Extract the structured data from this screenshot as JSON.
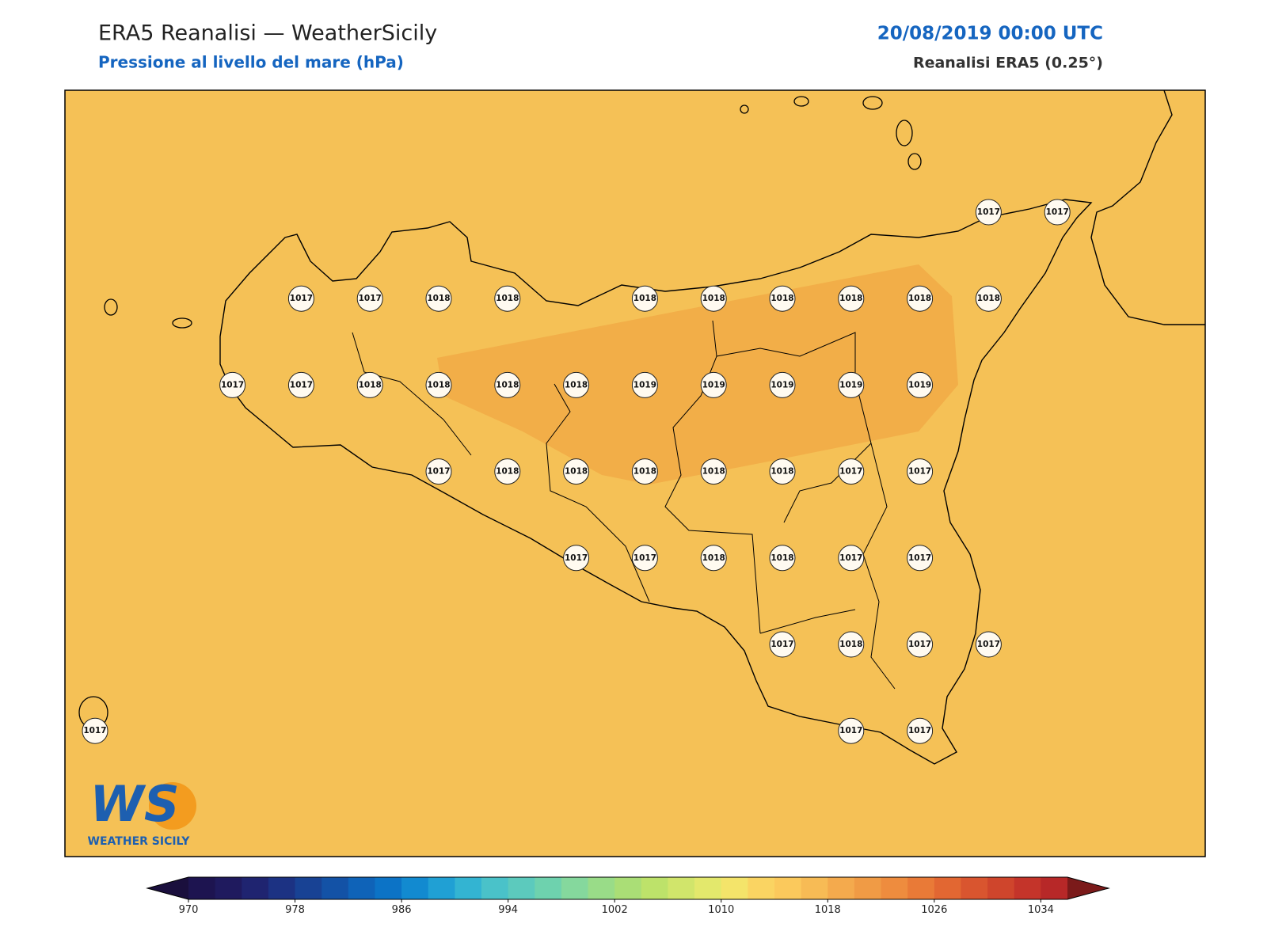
{
  "header": {
    "title": "ERA5 Reanalisi — WeatherSicily",
    "subtitle": "Pressione al livello del mare (hPa)",
    "date": "20/08/2019 00:00 UTC",
    "source": "Reanalisi ERA5 (0.25°)"
  },
  "map": {
    "background": "#f5c156",
    "pressure_grid": [
      [
        null,
        null,
        null,
        null,
        null,
        null,
        null,
        null,
        null,
        null,
        null,
        null,
        null,
        1017,
        1017
      ],
      [
        null,
        null,
        null,
        1017,
        1017,
        1018,
        1018,
        null,
        1018,
        1018,
        1018,
        1018,
        1018,
        1018,
        null
      ],
      [
        null,
        null,
        1017,
        1017,
        1018,
        1018,
        1018,
        1018,
        1019,
        1019,
        1019,
        1019,
        1019,
        null,
        null
      ],
      [
        null,
        null,
        null,
        null,
        null,
        1017,
        1018,
        1018,
        1018,
        1018,
        1018,
        1017,
        1017,
        null,
        null
      ],
      [
        null,
        null,
        null,
        null,
        null,
        null,
        null,
        1017,
        1017,
        1018,
        1018,
        1017,
        1017,
        null,
        null
      ],
      [
        null,
        null,
        null,
        null,
        null,
        null,
        null,
        null,
        null,
        null,
        1017,
        1018,
        1017,
        1017,
        null
      ],
      [
        1017,
        null,
        null,
        null,
        null,
        null,
        null,
        null,
        null,
        null,
        null,
        1017,
        1017,
        null,
        null
      ]
    ]
  },
  "logo": {
    "mark": "WS",
    "text": "WEATHER SICILY"
  },
  "colorbar": {
    "lim": [
      970,
      1036
    ],
    "ticks": [
      970,
      978,
      986,
      994,
      1002,
      1010,
      1018,
      1026,
      1034
    ],
    "colors": [
      "#1d1450",
      "#1f1a5e",
      "#1f2470",
      "#1c3283",
      "#184294",
      "#1352a6",
      "#0f63b8",
      "#0c73c6",
      "#128ad0",
      "#20a0d4",
      "#33b4d2",
      "#4ac2c9",
      "#5ccabd",
      "#6ed2ae",
      "#85d89d",
      "#99dc88",
      "#aade76",
      "#bde26a",
      "#d1e56b",
      "#e3e86c",
      "#f4e46a",
      "#fad462",
      "#fbc95c",
      "#f7bb55",
      "#f4aa4d",
      "#f09b45",
      "#ee8c3e",
      "#e97a37",
      "#e26732",
      "#d9552f",
      "#cf452c",
      "#c4342a",
      "#b72828"
    ],
    "under": "#1a0f3d",
    "over": "#7b1a1a"
  }
}
